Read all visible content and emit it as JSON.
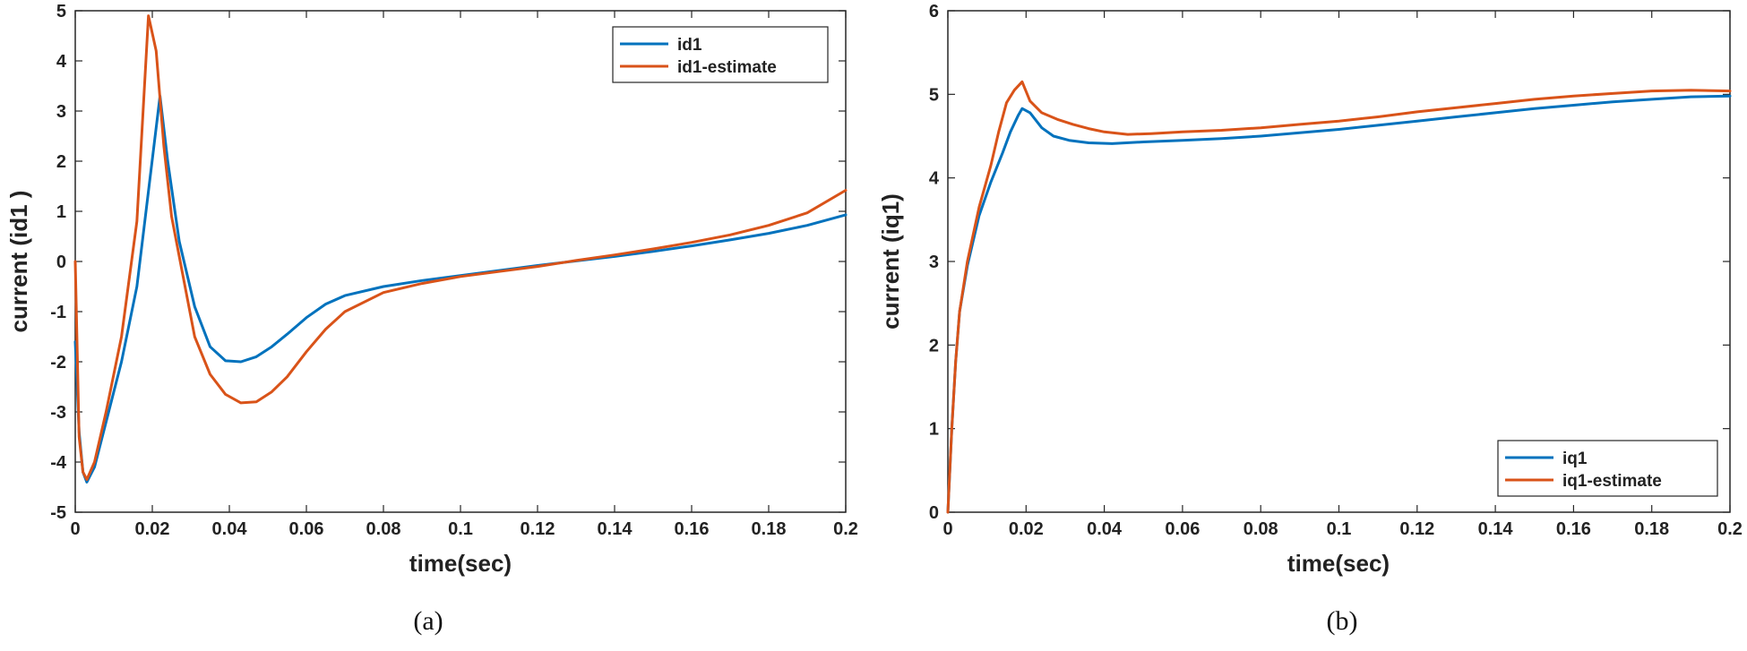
{
  "chart_data": [
    {
      "type": "line",
      "caption": "(a)",
      "xlabel": "time(sec)",
      "ylabel": "current (id1 )",
      "xlim": [
        0,
        0.2
      ],
      "ylim": [
        -5,
        5
      ],
      "xticks": [
        "0",
        "0.02",
        "0.04",
        "0.06",
        "0.08",
        "0.1",
        "0.12",
        "0.14",
        "0.16",
        "0.18",
        "0.2"
      ],
      "yticks": [
        "-5",
        "-4",
        "-3",
        "-2",
        "-1",
        "0",
        "1",
        "2",
        "3",
        "4",
        "5"
      ],
      "legend_position": "top-right",
      "series": [
        {
          "name": "id1",
          "color": "#0072BD",
          "x": [
            0,
            0.001,
            0.002,
            0.003,
            0.005,
            0.008,
            0.012,
            0.016,
            0.019,
            0.022,
            0.024,
            0.027,
            0.031,
            0.035,
            0.039,
            0.043,
            0.047,
            0.051,
            0.055,
            0.06,
            0.065,
            0.07,
            0.08,
            0.09,
            0.1,
            0.11,
            0.12,
            0.13,
            0.14,
            0.15,
            0.16,
            0.17,
            0.18,
            0.19,
            0.2
          ],
          "y": [
            -1.6,
            -3.4,
            -4.2,
            -4.4,
            -4.1,
            -3.2,
            -2.0,
            -0.5,
            1.4,
            3.3,
            2.0,
            0.4,
            -0.9,
            -1.7,
            -1.98,
            -2.0,
            -1.9,
            -1.7,
            -1.45,
            -1.12,
            -0.85,
            -0.68,
            -0.5,
            -0.38,
            -0.28,
            -0.18,
            -0.08,
            0.01,
            0.1,
            0.2,
            0.31,
            0.43,
            0.56,
            0.72,
            0.93
          ]
        },
        {
          "name": "id1-estimate",
          "color": "#D95319",
          "x": [
            0,
            0.001,
            0.002,
            0.003,
            0.005,
            0.008,
            0.012,
            0.016,
            0.019,
            0.021,
            0.023,
            0.025,
            0.028,
            0.031,
            0.035,
            0.039,
            0.043,
            0.047,
            0.051,
            0.055,
            0.06,
            0.065,
            0.07,
            0.08,
            0.09,
            0.1,
            0.11,
            0.12,
            0.13,
            0.14,
            0.15,
            0.16,
            0.17,
            0.18,
            0.19,
            0.2
          ],
          "y": [
            0,
            -3.5,
            -4.2,
            -4.35,
            -4.0,
            -3.0,
            -1.5,
            0.8,
            4.9,
            4.2,
            2.3,
            0.9,
            -0.3,
            -1.5,
            -2.25,
            -2.65,
            -2.82,
            -2.8,
            -2.6,
            -2.3,
            -1.8,
            -1.35,
            -1.0,
            -0.62,
            -0.44,
            -0.3,
            -0.2,
            -0.1,
            0.02,
            0.13,
            0.25,
            0.38,
            0.53,
            0.72,
            0.97,
            1.42
          ]
        }
      ]
    },
    {
      "type": "line",
      "caption": "(b)",
      "xlabel": "time(sec)",
      "ylabel": "current (iq1)",
      "xlim": [
        0,
        0.2
      ],
      "ylim": [
        0,
        6
      ],
      "xticks": [
        "0",
        "0.02",
        "0.04",
        "0.06",
        "0.08",
        "0.1",
        "0.12",
        "0.14",
        "0.16",
        "0.18",
        "0.2"
      ],
      "yticks": [
        "0",
        "1",
        "2",
        "3",
        "4",
        "5",
        "6"
      ],
      "legend_position": "bottom-right",
      "series": [
        {
          "name": "iq1",
          "color": "#0072BD",
          "x": [
            0,
            0.001,
            0.002,
            0.003,
            0.005,
            0.008,
            0.011,
            0.014,
            0.016,
            0.018,
            0.019,
            0.021,
            0.024,
            0.027,
            0.031,
            0.036,
            0.042,
            0.05,
            0.06,
            0.07,
            0.08,
            0.09,
            0.1,
            0.11,
            0.12,
            0.13,
            0.14,
            0.15,
            0.16,
            0.17,
            0.18,
            0.19,
            0.2
          ],
          "y": [
            0,
            1.0,
            1.8,
            2.4,
            2.95,
            3.55,
            3.95,
            4.3,
            4.55,
            4.75,
            4.83,
            4.78,
            4.6,
            4.5,
            4.45,
            4.42,
            4.41,
            4.43,
            4.45,
            4.47,
            4.5,
            4.54,
            4.58,
            4.63,
            4.68,
            4.73,
            4.78,
            4.83,
            4.87,
            4.91,
            4.94,
            4.97,
            4.98
          ]
        },
        {
          "name": "iq1-estimate",
          "color": "#D95319",
          "x": [
            0,
            0.001,
            0.002,
            0.003,
            0.005,
            0.008,
            0.011,
            0.013,
            0.015,
            0.017,
            0.019,
            0.021,
            0.024,
            0.028,
            0.032,
            0.036,
            0.04,
            0.046,
            0.052,
            0.06,
            0.07,
            0.08,
            0.09,
            0.1,
            0.11,
            0.12,
            0.13,
            0.14,
            0.15,
            0.16,
            0.17,
            0.18,
            0.19,
            0.2
          ],
          "y": [
            0,
            1.0,
            1.8,
            2.4,
            3.0,
            3.65,
            4.15,
            4.55,
            4.9,
            5.05,
            5.15,
            4.92,
            4.78,
            4.7,
            4.64,
            4.59,
            4.55,
            4.52,
            4.53,
            4.55,
            4.57,
            4.6,
            4.64,
            4.68,
            4.73,
            4.79,
            4.84,
            4.89,
            4.94,
            4.98,
            5.01,
            5.04,
            5.05,
            5.04
          ]
        }
      ]
    }
  ]
}
